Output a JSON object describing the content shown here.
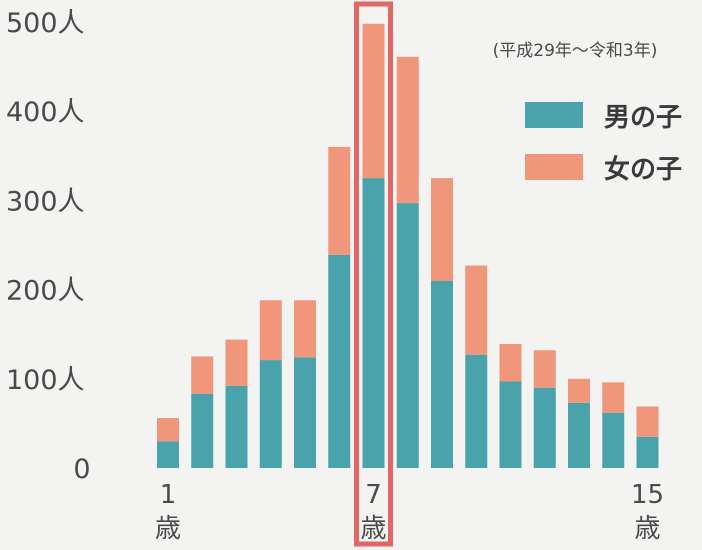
{
  "chart_data": {
    "type": "bar",
    "stacked": true,
    "categories": [
      "1",
      "2",
      "3",
      "4",
      "5",
      "6",
      "7",
      "8",
      "9",
      "10",
      "11",
      "12",
      "13",
      "14",
      "15"
    ],
    "series": [
      {
        "name": "男の子",
        "color": "#4aa3aa",
        "values": [
          30,
          83,
          92,
          121,
          124,
          239,
          325,
          297,
          210,
          127,
          97,
          90,
          73,
          62,
          35
        ]
      },
      {
        "name": "女の子",
        "color": "#f0967a",
        "values": [
          26,
          42,
          52,
          67,
          64,
          121,
          173,
          164,
          115,
          100,
          42,
          42,
          27,
          34,
          34
        ]
      }
    ],
    "ylim": [
      0,
      500
    ],
    "yticks": [
      {
        "value": 0,
        "label": "0"
      },
      {
        "value": 100,
        "label": "100人"
      },
      {
        "value": 200,
        "label": "200人"
      },
      {
        "value": 300,
        "label": "300人"
      },
      {
        "value": 400,
        "label": "400人"
      },
      {
        "value": 500,
        "label": "500人"
      }
    ],
    "xlabels": [
      {
        "category": "1",
        "num": "1",
        "unit": "歳"
      },
      {
        "category": "7",
        "num": "7",
        "unit": "歳"
      },
      {
        "category": "15",
        "num": "15",
        "unit": "歳"
      }
    ],
    "highlight_category": "7",
    "highlight_color": "#e06767",
    "note": "(平成29年～令和3年)",
    "legend_position": "top-right"
  }
}
